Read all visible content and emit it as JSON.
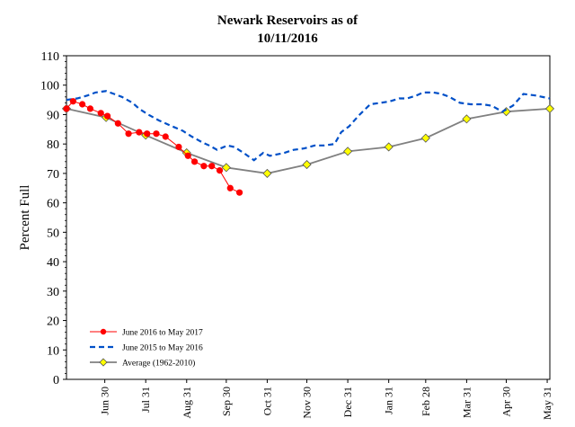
{
  "chart_data": {
    "type": "line",
    "title": "Newark Reservoirs as of",
    "subtitle": "10/11/2016",
    "xlabel": "",
    "ylabel": "Percent Full",
    "ylim": [
      0,
      110
    ],
    "y_ticks": [
      0,
      10,
      20,
      30,
      40,
      50,
      60,
      70,
      80,
      90,
      100,
      110
    ],
    "xlim_days": [
      0,
      366
    ],
    "x_tick_labels": [
      "Jun 30",
      "Jul 31",
      "Aug 31",
      "Sep 30",
      "Oct 31",
      "Nov 30",
      "Dec 31",
      "Jan 31",
      "Feb 28",
      "Mar 31",
      "Apr 30",
      "May 31"
    ],
    "x_tick_days": [
      29,
      60,
      91,
      121,
      152,
      182,
      213,
      244,
      272,
      303,
      333,
      364
    ],
    "grid": false,
    "legend_position": "bottom-left",
    "series": [
      {
        "name": "June 2016 to May 2017",
        "color": "#ff0000",
        "style": "solid-dots",
        "x": [
          0,
          5,
          12,
          18,
          26,
          31,
          39,
          47,
          55,
          61,
          68,
          75,
          85,
          92,
          97,
          104,
          110,
          116,
          124,
          131,
          138
        ],
        "y": [
          92,
          94.5,
          93.5,
          92,
          90.5,
          89.5,
          87,
          83.5,
          84,
          83.5,
          83.5,
          82.5,
          79,
          76,
          74,
          72.5,
          72.5,
          71,
          65,
          63.5,
          null
        ]
      },
      {
        "name": "June 2015 to May 2016",
        "color": "#0050c8",
        "style": "dashed",
        "x": [
          0,
          8,
          16,
          22,
          30,
          36,
          42,
          50,
          55,
          62,
          70,
          80,
          88,
          95,
          103,
          108,
          114,
          122,
          127,
          134,
          142,
          149,
          154,
          160,
          165,
          172,
          180,
          188,
          195,
          203,
          208,
          214,
          222,
          230,
          238,
          245,
          252,
          258,
          265,
          270,
          278,
          284,
          290,
          298,
          306,
          315,
          322,
          330,
          338,
          346,
          355,
          366
        ],
        "y": [
          95,
          95.5,
          96.5,
          97.5,
          98,
          97,
          96,
          94,
          92,
          90,
          88,
          86,
          84.5,
          82.5,
          80.5,
          79.5,
          78,
          79.5,
          79,
          77,
          74.5,
          77,
          76,
          76.5,
          77,
          78,
          78.5,
          79.5,
          79.5,
          80,
          84,
          86,
          90,
          93.5,
          94,
          94.5,
          95.5,
          95.5,
          96.5,
          97.5,
          97.5,
          97,
          96,
          94,
          93.5,
          93.5,
          93,
          91,
          93,
          97,
          96.5,
          95.5
        ]
      },
      {
        "name": "Average (1962-2010)",
        "color": "#808080",
        "style": "solid-diamond",
        "marker_color": "#ffff00",
        "x": [
          0,
          30,
          60,
          91,
          121,
          152,
          182,
          213,
          244,
          272,
          303,
          333,
          366
        ],
        "y": [
          92,
          89,
          83,
          77,
          72,
          70,
          73,
          77.5,
          79,
          82,
          88.5,
          91,
          92
        ]
      }
    ]
  }
}
